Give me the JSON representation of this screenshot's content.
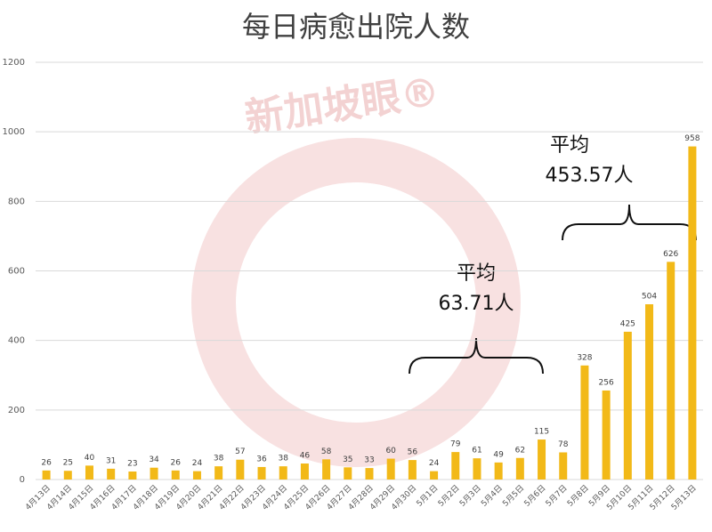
{
  "chart_data": {
    "type": "bar",
    "title": "每日病愈出院人数",
    "categories": [
      "4月13日",
      "4月14日",
      "4月15日",
      "4月16日",
      "4月17日",
      "4月18日",
      "4月19日",
      "4月20日",
      "4月21日",
      "4月22日",
      "4月23日",
      "4月24日",
      "4月25日",
      "4月26日",
      "4月27日",
      "4月28日",
      "4月29日",
      "4月30日",
      "5月1日",
      "5月2日",
      "5月3日",
      "5月4日",
      "5月5日",
      "5月6日",
      "5月7日",
      "5月8日",
      "5月9日",
      "5月10日",
      "5月11日",
      "5月12日",
      "5月13日"
    ],
    "values": [
      26,
      25,
      40,
      31,
      23,
      34,
      26,
      24,
      38,
      57,
      36,
      38,
      46,
      58,
      35,
      33,
      60,
      56,
      24,
      79,
      61,
      49,
      62,
      115,
      78,
      328,
      256,
      425,
      504,
      626,
      958
    ],
    "color": "#f2b918",
    "ylim": [
      0,
      1200
    ],
    "yticks": [
      0,
      200,
      400,
      600,
      800,
      1000,
      1200
    ],
    "grid": true,
    "annotations": [
      {
        "lines": [
          "平均",
          "63.71人"
        ]
      },
      {
        "lines": [
          "平均",
          "453.57人"
        ]
      }
    ],
    "watermark": "新加坡眼®"
  }
}
